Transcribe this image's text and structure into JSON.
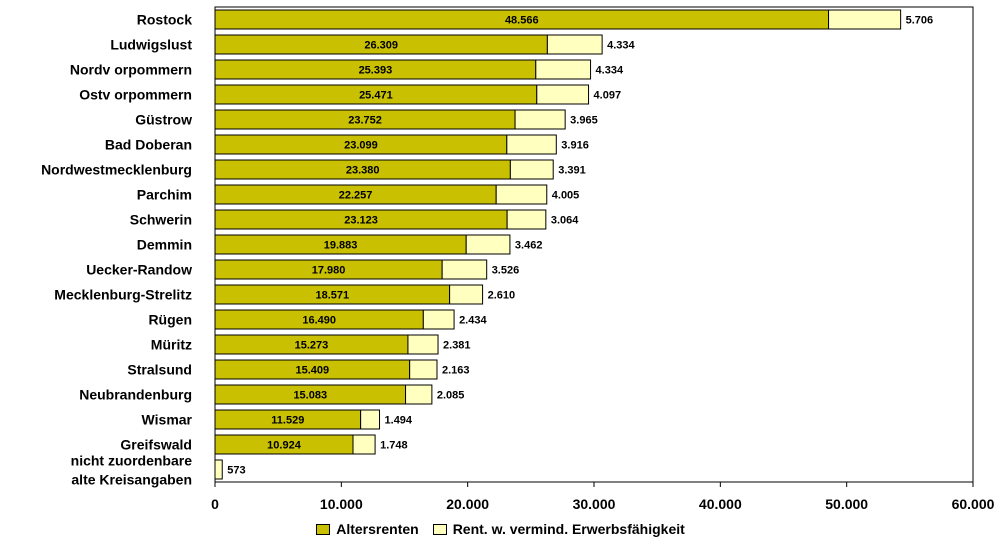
{
  "chart_data": {
    "type": "bar",
    "orientation": "horizontal",
    "stacked": true,
    "categories": [
      "Rostock",
      "Ludwigslust",
      "Nordv orpommern",
      "Ostv orpommern",
      "Güstrow",
      "Bad Doberan",
      "Nordwestmecklenburg",
      "Parchim",
      "Schwerin",
      "Demmin",
      "Uecker-Randow",
      "Mecklenburg-Strelitz",
      "Rügen",
      "Müritz",
      "Stralsund",
      "Neubrandenburg",
      "Wismar",
      "Greifswald",
      [
        "nicht zuordenbare",
        "alte Kreisangaben"
      ]
    ],
    "series": [
      {
        "name": "Altersrenten",
        "color": "#c8c000",
        "values": [
          48566,
          26309,
          25393,
          25471,
          23752,
          23099,
          23380,
          22257,
          23123,
          19883,
          17980,
          18571,
          16490,
          15273,
          15409,
          15083,
          11529,
          10924,
          0
        ],
        "labels": [
          "48.566",
          "26.309",
          "25.393",
          "25.471",
          "23.752",
          "23.099",
          "23.380",
          "22.257",
          "23.123",
          "19.883",
          "17.980",
          "18.571",
          "16.490",
          "15.273",
          "15.409",
          "15.083",
          "11.529",
          "10.924",
          ""
        ]
      },
      {
        "name": "Rent. w. vermind. Erwerbsfähigkeit",
        "color": "#ffffc0",
        "values": [
          5706,
          4334,
          4334,
          4097,
          3965,
          3916,
          3391,
          4005,
          3064,
          3462,
          3526,
          2610,
          2434,
          2381,
          2163,
          2085,
          1494,
          1748,
          573
        ],
        "labels": [
          "5.706",
          "4.334",
          "4.334",
          "4.097",
          "3.965",
          "3.916",
          "3.391",
          "4.005",
          "3.064",
          "3.462",
          "3.526",
          "2.610",
          "2.434",
          "2.381",
          "2.163",
          "2.085",
          "1.494",
          "1.748",
          "573"
        ]
      }
    ],
    "xlim": [
      0,
      60000
    ],
    "x_ticks": [
      0,
      10000,
      20000,
      30000,
      40000,
      50000,
      60000
    ],
    "x_tick_labels": [
      "0",
      "10.000",
      "20.000",
      "30.000",
      "40.000",
      "50.000",
      "60.000"
    ],
    "title": "",
    "xlabel": "",
    "ylabel": "",
    "grid": false,
    "legend_position": "bottom"
  }
}
